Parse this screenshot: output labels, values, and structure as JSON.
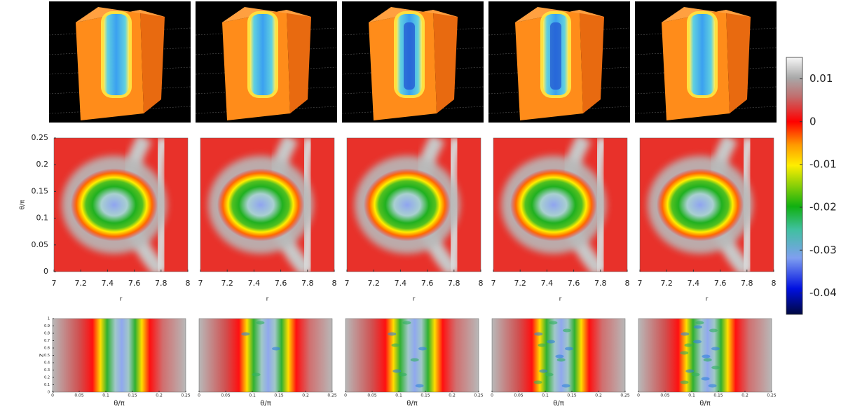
{
  "middle_row": {
    "xlabel": "r",
    "ylabel": "θ/π",
    "xlim": [
      7,
      8
    ],
    "xticks": [
      7,
      7.2,
      7.4,
      7.6,
      7.8,
      8
    ],
    "ylim": [
      0,
      0.25
    ],
    "yticks": [
      0,
      0.05,
      0.1,
      0.15,
      0.2,
      0.25
    ]
  },
  "bottom_row": {
    "xlabel": "θ/π",
    "ylabel": "z",
    "xlim": [
      0,
      0.25
    ],
    "xticks": [
      0,
      0.05,
      0.1,
      0.15,
      0.2,
      0.25
    ],
    "ylim": [
      0,
      1
    ],
    "yticks": [
      0,
      0.1,
      0.2,
      0.3,
      0.4,
      0.5,
      0.6,
      0.7,
      0.8,
      0.9,
      1
    ]
  },
  "colorbar": {
    "lim": [
      -0.045,
      0.015
    ],
    "ticks": [
      0.01,
      0,
      -0.01,
      -0.02,
      -0.03,
      -0.04
    ]
  }
}
